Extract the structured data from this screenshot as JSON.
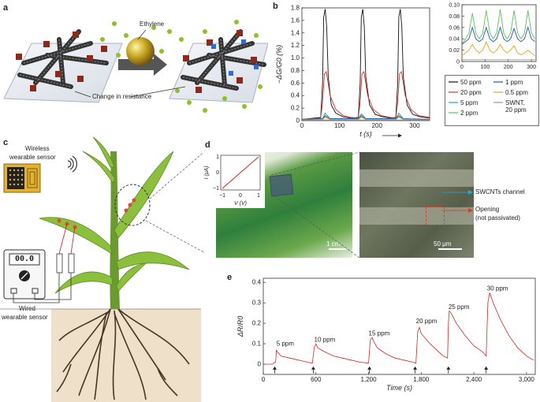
{
  "panels": {
    "a": "a",
    "b": "b",
    "c": "c",
    "d": "d",
    "e": "e"
  },
  "panel_a": {
    "ethylene_label": "Ethylene",
    "resistance_label": "Change in resistance"
  },
  "panel_c": {
    "wireless_label_1": "Wireless",
    "wireless_label_2": "wearable sensor",
    "meter_display": "00.0",
    "wired_label_1": "Wired",
    "wired_label_2": "wearable sensor"
  },
  "panel_d": {
    "inset_ylabel": "I (μA)",
    "inset_xlabel": "V (V)",
    "inset_xticks": [
      "−1",
      "0",
      "1"
    ],
    "inset_yticks": [
      "1",
      "0",
      "−1"
    ],
    "scale_left": "1 cm",
    "scale_right": "50 μm",
    "channel_label": "SWCNTs channel",
    "opening_label_1": "Opening",
    "opening_label_2": "(not passivated)"
  },
  "chart_data": [
    {
      "id": "b-main",
      "type": "line",
      "xlabel": "t (s)",
      "ylabel": "−ΔG/G0 (%)",
      "xlim": [
        0,
        340
      ],
      "ylim": [
        0,
        1.8
      ],
      "xticks": [
        "0",
        "100",
        "200",
        "300"
      ],
      "yticks": [
        "0",
        "0.2",
        "0.4",
        "0.6",
        "0.8",
        "1.0",
        "1.2",
        "1.4",
        "1.6",
        "1.8"
      ],
      "series": [
        {
          "name": "50 ppm",
          "color": "#111111",
          "x": [
            0,
            50,
            55,
            58,
            62,
            66,
            70,
            78,
            90,
            110,
            130,
            150,
            155,
            158,
            162,
            166,
            170,
            180,
            195,
            215,
            235,
            250,
            255,
            258,
            262,
            266,
            270,
            280,
            295,
            315,
            340
          ],
          "y": [
            0.02,
            0.05,
            0.6,
            1.65,
            1.78,
            1.5,
            0.7,
            0.25,
            0.12,
            0.06,
            0.04,
            0.05,
            0.6,
            1.65,
            1.78,
            1.5,
            0.7,
            0.25,
            0.1,
            0.06,
            0.04,
            0.05,
            0.6,
            1.65,
            1.78,
            1.5,
            0.7,
            0.25,
            0.1,
            0.06,
            0.04
          ]
        },
        {
          "name": "20 ppm",
          "color": "#d0342c",
          "x": [
            0,
            50,
            55,
            60,
            65,
            75,
            90,
            110,
            130,
            150,
            155,
            160,
            165,
            175,
            190,
            210,
            235,
            250,
            255,
            260,
            265,
            275,
            290,
            310,
            340
          ],
          "y": [
            0.02,
            0.04,
            0.3,
            0.75,
            0.78,
            0.4,
            0.18,
            0.08,
            0.05,
            0.04,
            0.3,
            0.75,
            0.78,
            0.4,
            0.18,
            0.08,
            0.05,
            0.04,
            0.3,
            0.75,
            0.78,
            0.4,
            0.18,
            0.08,
            0.05
          ]
        },
        {
          "name": "5 ppm",
          "color": "#2aa6a0",
          "x": [
            0,
            55,
            62,
            75,
            150,
            158,
            170,
            250,
            258,
            270,
            340
          ],
          "y": [
            0.02,
            0.03,
            0.12,
            0.03,
            0.03,
            0.11,
            0.03,
            0.03,
            0.12,
            0.03,
            0.02
          ]
        },
        {
          "name": "2 ppm",
          "color": "#5fbf5b",
          "x": [
            0,
            55,
            62,
            75,
            150,
            158,
            170,
            250,
            258,
            270,
            340
          ],
          "y": [
            0.02,
            0.02,
            0.06,
            0.02,
            0.02,
            0.06,
            0.02,
            0.02,
            0.06,
            0.02,
            0.02
          ]
        },
        {
          "name": "1 ppm",
          "color": "#2458a6",
          "x": [
            0,
            55,
            62,
            75,
            150,
            158,
            170,
            250,
            258,
            270,
            340
          ],
          "y": [
            0.02,
            0.03,
            0.08,
            0.03,
            0.03,
            0.08,
            0.03,
            0.03,
            0.08,
            0.03,
            0.02
          ]
        },
        {
          "name": "0.5 ppm",
          "color": "#f0a020",
          "x": [
            0,
            55,
            62,
            75,
            150,
            158,
            170,
            250,
            258,
            270,
            340
          ],
          "y": [
            0.01,
            0.02,
            0.05,
            0.02,
            0.02,
            0.05,
            0.02,
            0.02,
            0.05,
            0.02,
            0.01
          ]
        },
        {
          "name": "SWNT, 20 ppm",
          "color": "#999999",
          "x": [
            0,
            340
          ],
          "y": [
            0.01,
            0.01
          ]
        }
      ],
      "legend": [
        {
          "label": "50 ppm",
          "color": "#111111"
        },
        {
          "label": "1 ppm",
          "color": "#2458a6"
        },
        {
          "label": "20 ppm",
          "color": "#d0342c"
        },
        {
          "label": "0.5 ppm",
          "color": "#f0a020"
        },
        {
          "label": "5 ppm",
          "color": "#2aa6a0"
        },
        {
          "label": "SWNT,",
          "color": "#999999",
          "label2": "20 ppm"
        },
        {
          "label": "2 ppm",
          "color": "#5fbf5b"
        }
      ]
    },
    {
      "id": "b-inset",
      "type": "line",
      "xlim": [
        0,
        320
      ],
      "ylim": [
        0,
        0.1
      ],
      "xticks": [
        "0",
        "100",
        "200",
        "300"
      ],
      "yticks": [
        "0",
        "0.02",
        "0.04",
        "0.06",
        "0.08",
        "0.10"
      ],
      "series": [
        {
          "name": "2 ppm",
          "color": "#5fbf5b",
          "x": [
            0,
            15,
            30,
            45,
            60,
            75,
            90,
            105,
            120,
            135,
            150,
            165,
            180,
            195,
            210,
            225,
            240,
            255,
            270,
            285,
            300,
            315
          ],
          "y": [
            0.03,
            0.04,
            0.05,
            0.085,
            0.05,
            0.04,
            0.05,
            0.09,
            0.05,
            0.04,
            0.05,
            0.092,
            0.05,
            0.04,
            0.05,
            0.09,
            0.05,
            0.04,
            0.05,
            0.09,
            0.05,
            0.04
          ]
        },
        {
          "name": "1 ppm",
          "color": "#2458a6",
          "x": [
            0,
            15,
            30,
            45,
            60,
            75,
            90,
            105,
            120,
            135,
            150,
            165,
            180,
            195,
            210,
            225,
            240,
            255,
            270,
            285,
            300,
            315
          ],
          "y": [
            0.03,
            0.035,
            0.04,
            0.06,
            0.04,
            0.035,
            0.04,
            0.06,
            0.04,
            0.035,
            0.04,
            0.06,
            0.04,
            0.035,
            0.04,
            0.058,
            0.04,
            0.035,
            0.04,
            0.06,
            0.04,
            0.035
          ]
        },
        {
          "name": "0.5 ppm",
          "color": "#f0a020",
          "x": [
            0,
            15,
            30,
            45,
            60,
            75,
            90,
            105,
            120,
            135,
            150,
            165,
            180,
            195,
            210,
            225,
            240,
            255,
            270,
            285,
            300,
            315
          ],
          "y": [
            0.01,
            0.015,
            0.02,
            0.03,
            0.02,
            0.015,
            0.02,
            0.035,
            0.02,
            0.015,
            0.02,
            0.03,
            0.02,
            0.015,
            0.02,
            0.028,
            0.015,
            0.012,
            0.015,
            0.02,
            0.015,
            0.01
          ]
        },
        {
          "name": "SWNT, 20 ppm",
          "color": "#999999",
          "x": [
            0,
            320
          ],
          "y": [
            0.003,
            0.003
          ]
        }
      ]
    },
    {
      "id": "e",
      "type": "line",
      "xlabel": "Time (s)",
      "ylabel": "ΔR/R0",
      "xlim": [
        0,
        3100
      ],
      "ylim": [
        -0.05,
        0.42
      ],
      "xticks": [
        "0",
        "600",
        "1,200",
        "1,800",
        "2,400",
        "3,000"
      ],
      "yticks": [
        "0",
        "0.1",
        "0.2",
        "0.3",
        "0.4"
      ],
      "series": [
        {
          "name": "response",
          "color": "#d6261f",
          "x": [
            0,
            100,
            140,
            150,
            160,
            200,
            300,
            400,
            500,
            560,
            580,
            600,
            620,
            700,
            800,
            900,
            1000,
            1100,
            1200,
            1220,
            1240,
            1260,
            1300,
            1400,
            1500,
            1600,
            1700,
            1740,
            1760,
            1780,
            1800,
            1900,
            2000,
            2050,
            2100,
            2110,
            2120,
            2140,
            2200,
            2300,
            2400,
            2500,
            2540,
            2560,
            2580,
            2620,
            2700,
            2800,
            2900,
            3000,
            3080
          ],
          "y": [
            0.0,
            0.0,
            0.01,
            0.07,
            0.06,
            0.04,
            0.03,
            0.02,
            0.01,
            0.005,
            0.08,
            0.1,
            0.08,
            0.06,
            0.04,
            0.03,
            0.02,
            0.01,
            0.005,
            0.12,
            0.13,
            0.11,
            0.08,
            0.05,
            0.03,
            0.02,
            0.01,
            0.005,
            0.16,
            0.18,
            0.15,
            0.1,
            0.06,
            0.04,
            0.03,
            0.2,
            0.26,
            0.25,
            0.2,
            0.14,
            0.09,
            0.06,
            0.04,
            0.3,
            0.35,
            0.3,
            0.22,
            0.14,
            0.08,
            0.04,
            0.02
          ]
        }
      ],
      "annotations": [
        {
          "label": "5 ppm",
          "x": 150,
          "y": 0.09
        },
        {
          "label": "10 ppm",
          "x": 580,
          "y": 0.11
        },
        {
          "label": "15 ppm",
          "x": 1200,
          "y": 0.14
        },
        {
          "label": "20 ppm",
          "x": 1740,
          "y": 0.2
        },
        {
          "label": "25 ppm",
          "x": 2110,
          "y": 0.27
        },
        {
          "label": "30 ppm",
          "x": 2550,
          "y": 0.36
        }
      ],
      "arrows_x": [
        130,
        570,
        1210,
        1730,
        2110,
        2540
      ]
    }
  ]
}
